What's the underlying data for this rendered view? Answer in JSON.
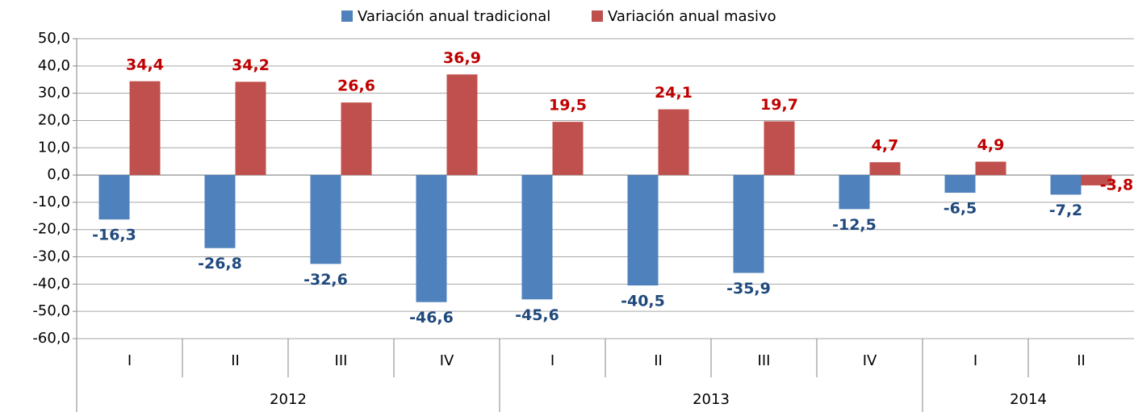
{
  "chart_data": {
    "type": "bar",
    "groups": [
      {
        "label": "2012",
        "categories": [
          "I",
          "II",
          "III",
          "IV"
        ]
      },
      {
        "label": "2013",
        "categories": [
          "I",
          "II",
          "III",
          "IV"
        ]
      },
      {
        "label": "2014",
        "categories": [
          "I",
          "II"
        ]
      }
    ],
    "series": [
      {
        "name": "Variación anual tradicional",
        "color": "#4f81bd",
        "label_color": "#1f497d",
        "values": [
          -16.3,
          -26.8,
          -32.6,
          -46.6,
          -45.6,
          -40.5,
          -35.9,
          -12.5,
          -6.5,
          -7.2
        ],
        "value_labels": [
          "-16,3",
          "-26,8",
          "-32,6",
          "-46,6",
          "-45,6",
          "-40,5",
          "-35,9",
          "-12,5",
          "-6,5",
          "-7,2"
        ]
      },
      {
        "name": "Variación anual masivo",
        "color": "#c0504d",
        "label_color": "#c00000",
        "values": [
          34.4,
          34.2,
          26.6,
          36.9,
          19.5,
          24.1,
          19.7,
          4.7,
          4.9,
          -3.8
        ],
        "value_labels": [
          "34,4",
          "34,2",
          "26,6",
          "36,9",
          "19,5",
          "24,1",
          "19,7",
          "4,7",
          "4,9",
          "-3,8"
        ]
      }
    ],
    "ylim": [
      -60,
      50
    ],
    "yticks": [
      {
        "value": -60,
        "label": "-60,0"
      },
      {
        "value": -50,
        "label": "-50,0"
      },
      {
        "value": -40,
        "label": "-40,0"
      },
      {
        "value": -30,
        "label": "-30,0"
      },
      {
        "value": -20,
        "label": "-20,0"
      },
      {
        "value": -10,
        "label": "-10,0"
      },
      {
        "value": 0,
        "label": "0,0"
      },
      {
        "value": 10,
        "label": "10,0"
      },
      {
        "value": 20,
        "label": "20,0"
      },
      {
        "value": 30,
        "label": "30,0"
      },
      {
        "value": 40,
        "label": "40,0"
      },
      {
        "value": 50,
        "label": "50,0"
      }
    ],
    "grid": true,
    "legend": "top"
  }
}
